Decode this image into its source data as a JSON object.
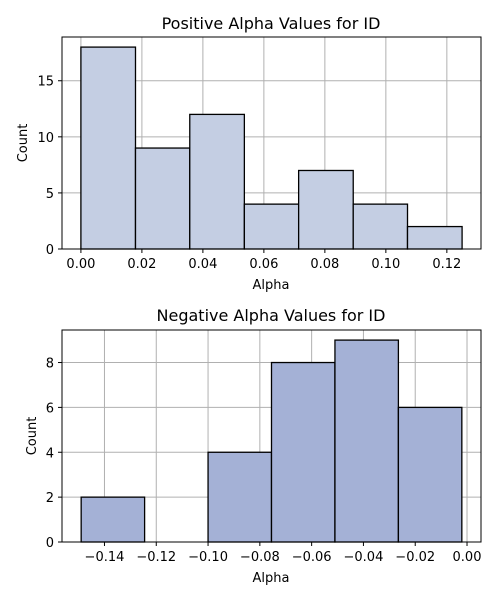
{
  "colors": {
    "positive_fill": "#c4cee3",
    "negative_fill": "#a4b1d6",
    "bar_edge": "#000000",
    "grid": "#b0b0b0",
    "axis": "#000000",
    "background": "#ffffff"
  },
  "chart_data": [
    {
      "type": "bar",
      "title": "Positive Alpha Values for ID",
      "xlabel": "Alpha",
      "ylabel": "Count",
      "bins": [
        {
          "x0": 0.0,
          "x1": 0.0179,
          "count": 18
        },
        {
          "x0": 0.0179,
          "x1": 0.0357,
          "count": 9
        },
        {
          "x0": 0.0357,
          "x1": 0.0536,
          "count": 12
        },
        {
          "x0": 0.0536,
          "x1": 0.0714,
          "count": 4
        },
        {
          "x0": 0.0714,
          "x1": 0.0893,
          "count": 7
        },
        {
          "x0": 0.0893,
          "x1": 0.1071,
          "count": 4
        },
        {
          "x0": 0.1071,
          "x1": 0.125,
          "count": 2
        }
      ],
      "xlim": [
        -0.0062,
        0.1312
      ],
      "ylim": [
        0,
        18.9
      ],
      "xticks": [
        0.0,
        0.02,
        0.04,
        0.06,
        0.08,
        0.1,
        0.12
      ],
      "xtick_labels": [
        "0.00",
        "0.02",
        "0.04",
        "0.06",
        "0.08",
        "0.10",
        "0.12"
      ],
      "yticks": [
        0,
        5,
        10,
        15
      ],
      "ytick_labels": [
        "0",
        "5",
        "10",
        "15"
      ],
      "grid": true,
      "color_key": "positive_fill"
    },
    {
      "type": "bar",
      "title": "Negative Alpha Values for ID",
      "xlabel": "Alpha",
      "ylabel": "Count",
      "bins": [
        {
          "x0": -0.149,
          "x1": -0.1245,
          "count": 2
        },
        {
          "x0": -0.1245,
          "x1": -0.1,
          "count": 0
        },
        {
          "x0": -0.1,
          "x1": -0.0755,
          "count": 4
        },
        {
          "x0": -0.0755,
          "x1": -0.051,
          "count": 8
        },
        {
          "x0": -0.051,
          "x1": -0.0265,
          "count": 9
        },
        {
          "x0": -0.0265,
          "x1": -0.002,
          "count": 6
        }
      ],
      "xlim": [
        -0.1564,
        0.0054
      ],
      "ylim": [
        0,
        9.45
      ],
      "xticks": [
        -0.14,
        -0.12,
        -0.1,
        -0.08,
        -0.06,
        -0.04,
        -0.02,
        0.0
      ],
      "xtick_labels": [
        "−0.14",
        "−0.12",
        "−0.10",
        "−0.08",
        "−0.06",
        "−0.04",
        "−0.02",
        "0.00"
      ],
      "yticks": [
        0,
        2,
        4,
        6,
        8
      ],
      "ytick_labels": [
        "0",
        "2",
        "4",
        "6",
        "8"
      ],
      "grid": true,
      "color_key": "negative_fill"
    }
  ]
}
